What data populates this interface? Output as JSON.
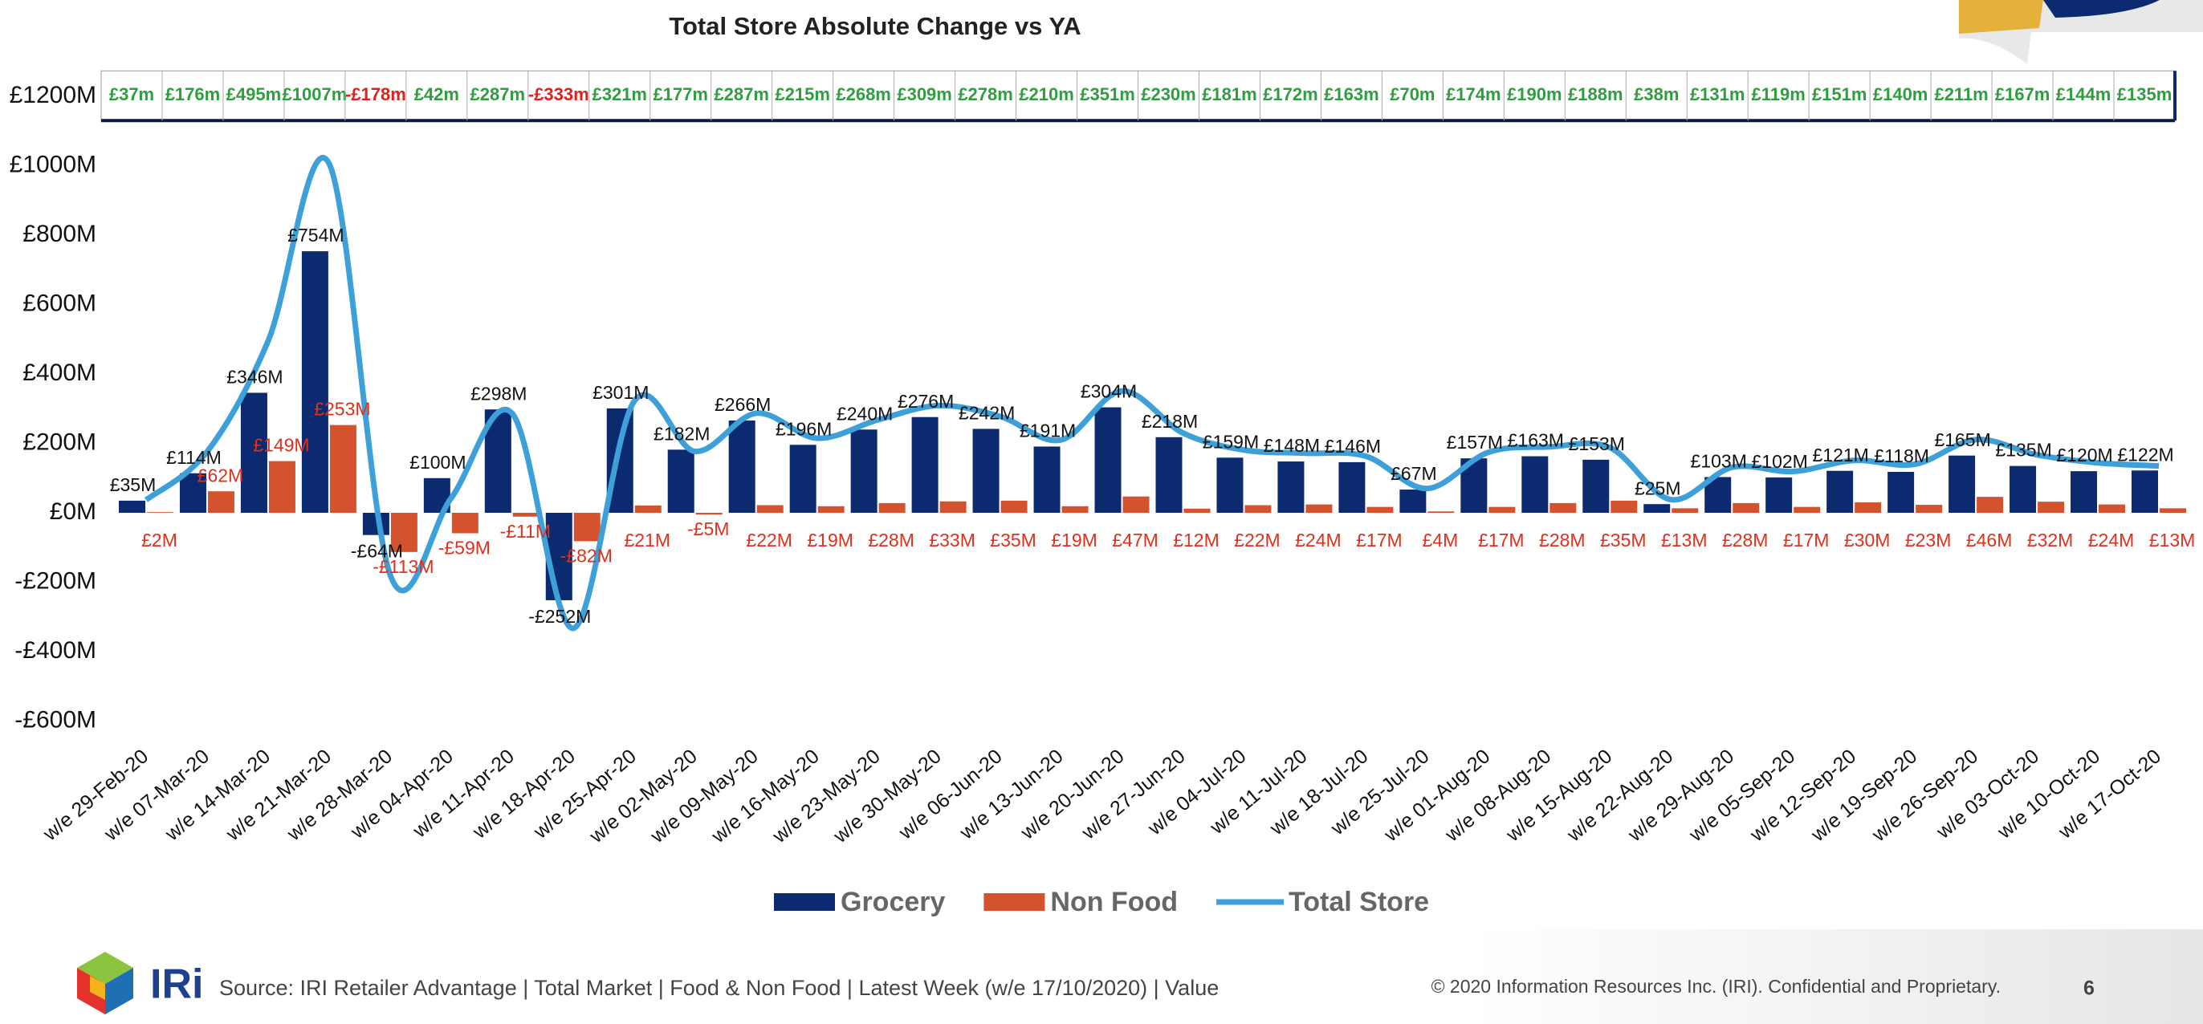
{
  "chart_data": {
    "type": "bar_line",
    "title": "Total Store Absolute Change vs YA",
    "categories": [
      "w/e 29-Feb-20",
      "w/e 07-Mar-20",
      "w/e 14-Mar-20",
      "w/e 21-Mar-20",
      "w/e 28-Mar-20",
      "w/e 04-Apr-20",
      "w/e 11-Apr-20",
      "w/e 18-Apr-20",
      "w/e 25-Apr-20",
      "w/e 02-May-20",
      "w/e 09-May-20",
      "w/e 16-May-20",
      "w/e 23-May-20",
      "w/e 30-May-20",
      "w/e 06-Jun-20",
      "w/e 13-Jun-20",
      "w/e 20-Jun-20",
      "w/e 27-Jun-20",
      "w/e 04-Jul-20",
      "w/e 11-Jul-20",
      "w/e 18-Jul-20",
      "w/e 25-Jul-20",
      "w/e 01-Aug-20",
      "w/e 08-Aug-20",
      "w/e 15-Aug-20",
      "w/e 22-Aug-20",
      "w/e 29-Aug-20",
      "w/e 05-Sep-20",
      "w/e 12-Sep-20",
      "w/e 19-Sep-20",
      "w/e 26-Sep-20",
      "w/e 03-Oct-20",
      "w/e 10-Oct-20",
      "w/e 17-Oct-20"
    ],
    "series": [
      {
        "name": "Grocery",
        "color": "#0b2a6f",
        "kind": "bar",
        "values": [
          35,
          114,
          346,
          754,
          -64,
          100,
          298,
          -252,
          301,
          182,
          266,
          196,
          240,
          276,
          242,
          191,
          304,
          218,
          159,
          148,
          146,
          67,
          157,
          163,
          153,
          25,
          103,
          102,
          121,
          118,
          165,
          135,
          120,
          122
        ],
        "value_labels": [
          "£35M",
          "£114M",
          "£346M",
          "£754M",
          "-£64M",
          "£100M",
          "£298M",
          "-£252M",
          "£301M",
          "£182M",
          "£266M",
          "£196M",
          "£240M",
          "£276M",
          "£242M",
          "£191M",
          "£304M",
          "£218M",
          "£159M",
          "£148M",
          "£146M",
          "£67M",
          "£157M",
          "£163M",
          "£153M",
          "£25M",
          "£103M",
          "£102M",
          "£121M",
          "£118M",
          "£165M",
          "£135M",
          "£120M",
          "£122M"
        ]
      },
      {
        "name": "Non Food",
        "color": "#d4532e",
        "kind": "bar",
        "values": [
          2,
          62,
          149,
          253,
          -113,
          -59,
          -11,
          -82,
          21,
          -5,
          22,
          19,
          28,
          33,
          35,
          19,
          47,
          12,
          22,
          24,
          17,
          4,
          17,
          28,
          35,
          13,
          28,
          17,
          30,
          23,
          46,
          32,
          24,
          13
        ],
        "value_labels": [
          "£2M",
          "£62M",
          "£149M",
          "£253M",
          "-£113M",
          "-£59M",
          "-£11M",
          "-£82M",
          "£21M",
          "-£5M",
          "£22M",
          "£19M",
          "£28M",
          "£33M",
          "£35M",
          "£19M",
          "£47M",
          "£12M",
          "£22M",
          "£24M",
          "£17M",
          "£4M",
          "£17M",
          "£28M",
          "£35M",
          "£13M",
          "£28M",
          "£17M",
          "£30M",
          "£23M",
          "£46M",
          "£32M",
          "£24M",
          "£13M"
        ]
      },
      {
        "name": "Total Store",
        "color": "#3ea0d8",
        "kind": "line",
        "values": [
          37,
          176,
          495,
          1007,
          -178,
          42,
          287,
          -333,
          321,
          177,
          287,
          215,
          268,
          309,
          278,
          210,
          351,
          230,
          181,
          172,
          163,
          70,
          174,
          190,
          188,
          38,
          131,
          119,
          151,
          140,
          211,
          167,
          144,
          135
        ],
        "value_labels": [
          "£37m",
          "£176m",
          "£495m",
          "£1007m",
          "-£178m",
          "£42m",
          "£287m",
          "-£333m",
          "£321m",
          "£177m",
          "£287m",
          "£215m",
          "£268m",
          "£309m",
          "£278m",
          "£210m",
          "£351m",
          "£230m",
          "£181m",
          "£172m",
          "£163m",
          "£70m",
          "£174m",
          "£190m",
          "£188m",
          "£38m",
          "£131m",
          "£119m",
          "£151m",
          "£140m",
          "£211m",
          "£167m",
          "£144m",
          "£135m"
        ]
      }
    ],
    "ylim": [
      -600,
      1200
    ],
    "yticks": [
      {
        "value": -600,
        "label": "-£600M"
      },
      {
        "value": -400,
        "label": "-£400M"
      },
      {
        "value": -200,
        "label": "-£200M"
      },
      {
        "value": 0,
        "label": "£0M"
      },
      {
        "value": 200,
        "label": "£200M"
      },
      {
        "value": 400,
        "label": "£400M"
      },
      {
        "value": 600,
        "label": "£600M"
      },
      {
        "value": 800,
        "label": "£800M"
      },
      {
        "value": 1000,
        "label": "£1000M"
      },
      {
        "value": 1200,
        "label": "£1200M"
      }
    ],
    "grid": false,
    "legend": "bottom"
  },
  "footer": {
    "logo": "IRi",
    "source": "Source: IRI Retailer Advantage | Total Market | Food & Non Food | Latest Week (w/e 17/10/2020) | Value",
    "copyright": "© 2020 Information Resources Inc. (IRI). Confidential and Proprietary.",
    "page": "6"
  }
}
